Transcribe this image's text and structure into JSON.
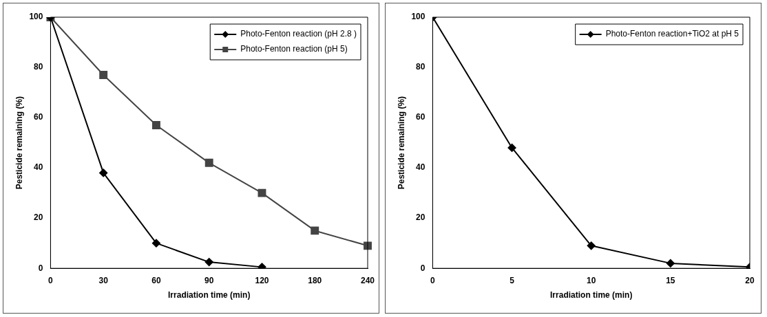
{
  "chart_data": [
    {
      "type": "line",
      "xlabel": "Irradiation time (min)",
      "ylabel": "Pesticide remaining (%)",
      "categories": [
        "0",
        "30",
        "60",
        "90",
        "120",
        "180",
        "240"
      ],
      "ylim": [
        0,
        100
      ],
      "yticks": [
        0,
        20,
        40,
        60,
        80,
        100
      ],
      "grid": false,
      "legend": "top right",
      "line_style": "solid",
      "series": [
        {
          "name": "Photo-Fenton reaction (pH 2.8 )",
          "color": "#000000",
          "marker": "diamond",
          "values": [
            100,
            38,
            10,
            2.5,
            0.5,
            null,
            null
          ]
        },
        {
          "name": "Photo-Fenton reaction (pH 5)",
          "color": "#444444",
          "marker": "square",
          "values": [
            100,
            77,
            57,
            42,
            30,
            15,
            9
          ]
        }
      ]
    },
    {
      "type": "line",
      "xlabel": "Irradiation time (min)",
      "ylabel": "Pesticide remaining (%)",
      "x": [
        0,
        5,
        10,
        15,
        20
      ],
      "xlim": [
        0,
        20
      ],
      "xticks": [
        0,
        5,
        10,
        15,
        20
      ],
      "ylim": [
        0,
        100
      ],
      "yticks": [
        0,
        20,
        40,
        60,
        80,
        100
      ],
      "grid": false,
      "legend": "top right",
      "line_style": "solid",
      "series": [
        {
          "name": "Photo-Fenton reaction+TiO2 at pH 5",
          "color": "#000000",
          "marker": "diamond",
          "values": [
            100,
            48,
            9,
            2,
            0.5
          ]
        }
      ]
    }
  ]
}
